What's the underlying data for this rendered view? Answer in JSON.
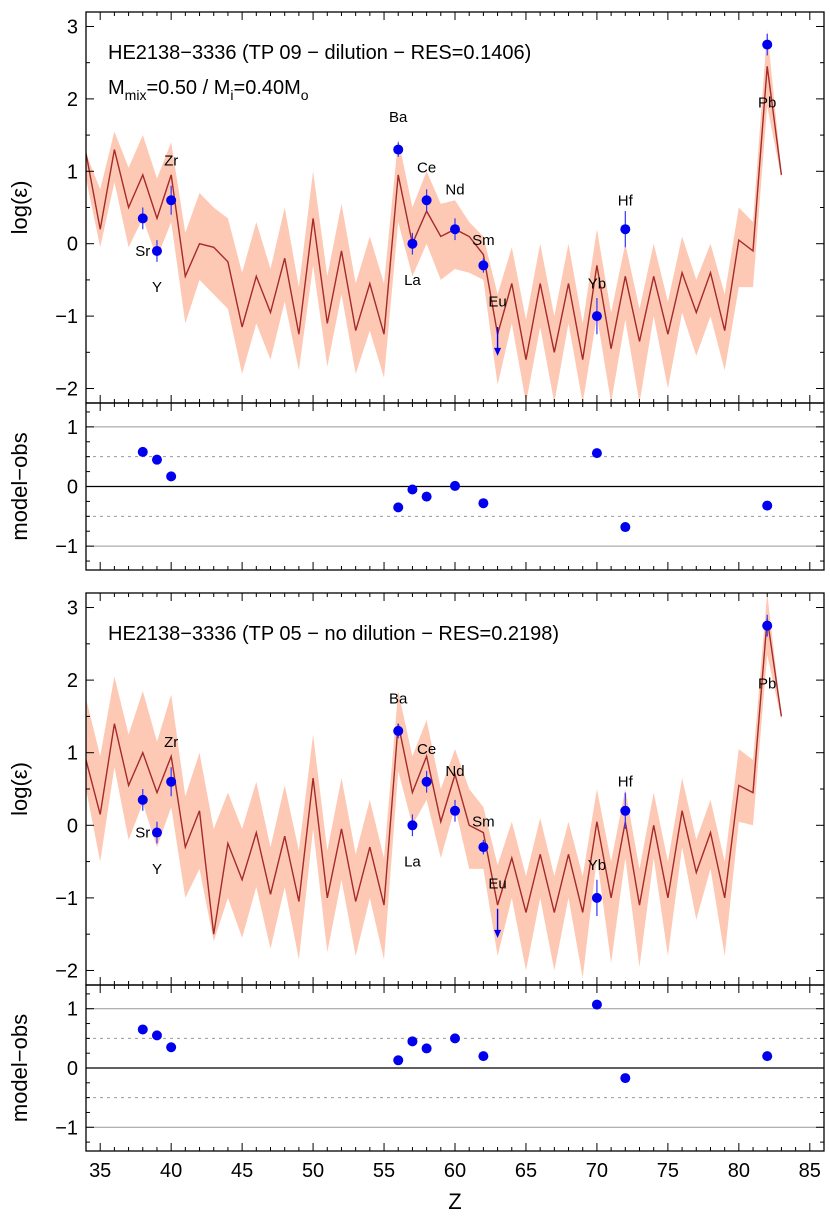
{
  "chart_data": [
    {
      "type": "line",
      "panel": "top-abundance",
      "title_line1": "HE2138−3336 (TP 09 − dilution − RES=0.1406)",
      "title_line2": {
        "a": "M",
        "a_sub": "mix",
        "b": "=0.50 / M",
        "b_sub": "i",
        "c": "=0.40M",
        "c_sub": "o"
      },
      "ylabel": "log(ε)",
      "xlim": [
        34,
        86
      ],
      "ylim": [
        -2.2,
        3.2
      ],
      "yticks": [
        -2,
        -1,
        0,
        1,
        2,
        3
      ],
      "model_line": {
        "x": [
          34,
          35,
          36,
          37,
          38,
          39,
          40,
          41,
          42,
          43,
          44,
          45,
          46,
          47,
          48,
          49,
          50,
          51,
          52,
          53,
          54,
          55,
          56,
          57,
          58,
          59,
          60,
          61,
          62,
          63,
          64,
          65,
          66,
          67,
          68,
          69,
          70,
          71,
          72,
          73,
          74,
          75,
          76,
          77,
          78,
          79,
          80,
          81,
          82,
          83
        ],
        "y": [
          1.25,
          0.2,
          1.3,
          0.5,
          0.95,
          0.35,
          0.95,
          -0.45,
          0.0,
          -0.05,
          -0.25,
          -1.15,
          -0.45,
          -0.95,
          -0.2,
          -1.25,
          0.35,
          -1.1,
          -0.1,
          -1.2,
          -0.55,
          -1.25,
          0.95,
          0.0,
          0.45,
          0.1,
          0.2,
          0.1,
          -0.15,
          -1.25,
          -0.55,
          -1.6,
          -0.55,
          -1.5,
          -0.55,
          -1.6,
          -0.3,
          -1.45,
          -0.45,
          -1.35,
          -0.45,
          -1.25,
          -0.4,
          -0.95,
          -0.4,
          -1.2,
          0.05,
          -0.1,
          2.45,
          0.95
        ]
      },
      "band_upper": [
        1.25,
        0.75,
        1.55,
        1.05,
        1.5,
        0.9,
        1.4,
        0.15,
        0.7,
        0.5,
        0.35,
        -0.4,
        0.3,
        -0.35,
        0.5,
        -0.6,
        1.0,
        -0.45,
        0.55,
        -0.55,
        0.1,
        -0.55,
        1.45,
        0.5,
        1.0,
        0.55,
        0.6,
        0.3,
        0.1,
        -0.7,
        -0.05,
        -1.05,
        0.0,
        -1.0,
        0.0,
        -1.1,
        0.2,
        -0.95,
        0.0,
        -0.9,
        0.0,
        -0.8,
        0.1,
        -0.5,
        0.0,
        -0.7,
        0.5,
        0.3,
        2.95,
        1.0
      ],
      "band_lower": [
        0.9,
        -0.05,
        0.85,
        -0.05,
        0.35,
        -0.2,
        0.3,
        -1.1,
        -0.5,
        -0.7,
        -0.9,
        -1.8,
        -1.1,
        -1.6,
        -0.8,
        -1.75,
        -0.3,
        -1.7,
        -0.7,
        -1.8,
        -1.2,
        -1.85,
        0.3,
        -0.45,
        0.0,
        -0.5,
        -0.35,
        -0.4,
        -0.5,
        -1.95,
        -1.1,
        -2.2,
        -1.15,
        -2.2,
        -1.1,
        -2.2,
        -1.0,
        -2.2,
        -1.05,
        -2.2,
        -1.0,
        -2.0,
        -0.95,
        -1.55,
        -1.0,
        -1.75,
        -0.6,
        -0.6,
        1.9,
        0.9
      ],
      "observations": [
        {
          "el": "Sr",
          "z": 38,
          "y": 0.35,
          "err": 0.15
        },
        {
          "el": "Y",
          "z": 39,
          "y": -0.1,
          "err": 0.15
        },
        {
          "el": "Zr",
          "z": 40,
          "y": 0.6,
          "err": 0.2
        },
        {
          "el": "Ba",
          "z": 56,
          "y": 1.3,
          "err": 0.1
        },
        {
          "el": "La",
          "z": 57,
          "y": 0.0,
          "err": 0.15
        },
        {
          "el": "Ce",
          "z": 58,
          "y": 0.6,
          "err": 0.15
        },
        {
          "el": "Nd",
          "z": 60,
          "y": 0.2,
          "err": 0.15
        },
        {
          "el": "Sm",
          "z": 62,
          "y": -0.3,
          "err": 0.1
        },
        {
          "el": "Yb",
          "z": 70,
          "y": -1.0,
          "err": 0.25
        },
        {
          "el": "Hf",
          "z": 72,
          "y": 0.2,
          "err": 0.25
        },
        {
          "el": "Pb",
          "z": 82,
          "y": 2.75,
          "err": 0.15
        }
      ],
      "upper_limits": [
        {
          "el": "Eu",
          "z": 63,
          "y": -1.15,
          "y_to": -1.55
        }
      ],
      "labels": [
        {
          "text": "Sr",
          "z": 38,
          "y": -0.1
        },
        {
          "text": "Y",
          "z": 39,
          "y": -0.6
        },
        {
          "text": "Zr",
          "z": 40,
          "y": 1.15
        },
        {
          "text": "Ba",
          "z": 56,
          "y": 1.75
        },
        {
          "text": "La",
          "z": 57,
          "y": -0.5
        },
        {
          "text": "Ce",
          "z": 58,
          "y": 1.05
        },
        {
          "text": "Nd",
          "z": 60,
          "y": 0.75
        },
        {
          "text": "Sm",
          "z": 62,
          "y": 0.05
        },
        {
          "text": "Eu",
          "z": 63,
          "y": -0.8
        },
        {
          "text": "Yb",
          "z": 70,
          "y": -0.55
        },
        {
          "text": "Hf",
          "z": 72,
          "y": 0.6
        },
        {
          "text": "Pb",
          "z": 82,
          "y": 1.95
        }
      ]
    },
    {
      "type": "scatter",
      "panel": "top-residual",
      "ylabel": "model−obs",
      "xlim": [
        34,
        86
      ],
      "ylim": [
        -1.4,
        1.4
      ],
      "yticks": [
        -1,
        0,
        1
      ],
      "points": [
        {
          "el": "Sr",
          "z": 38,
          "y": 0.58
        },
        {
          "el": "Y",
          "z": 39,
          "y": 0.45
        },
        {
          "el": "Zr",
          "z": 40,
          "y": 0.17
        },
        {
          "el": "Ba",
          "z": 56,
          "y": -0.35
        },
        {
          "el": "La",
          "z": 57,
          "y": -0.05
        },
        {
          "el": "Ce",
          "z": 58,
          "y": -0.17
        },
        {
          "el": "Nd",
          "z": 60,
          "y": 0.01
        },
        {
          "el": "Sm",
          "z": 62,
          "y": -0.28
        },
        {
          "el": "Yb",
          "z": 70,
          "y": 0.56
        },
        {
          "el": "Hf",
          "z": 72,
          "y": -0.68
        },
        {
          "el": "Pb",
          "z": 82,
          "y": -0.32
        }
      ]
    },
    {
      "type": "line",
      "panel": "bottom-abundance",
      "title_line1": "HE2138−3336 (TP 05 − no dilution − RES=0.2198)",
      "ylabel": "log(ε)",
      "xlim": [
        34,
        86
      ],
      "ylim": [
        -2.2,
        3.2
      ],
      "yticks": [
        -2,
        -1,
        0,
        1,
        2,
        3
      ],
      "model_line": {
        "x": [
          34,
          35,
          36,
          37,
          38,
          39,
          40,
          41,
          42,
          43,
          44,
          45,
          46,
          47,
          48,
          49,
          50,
          51,
          52,
          53,
          54,
          55,
          56,
          57,
          58,
          59,
          60,
          61,
          62,
          63,
          64,
          65,
          66,
          67,
          68,
          69,
          70,
          71,
          72,
          73,
          74,
          75,
          76,
          77,
          78,
          79,
          80,
          81,
          82,
          83
        ],
        "y": [
          0.9,
          0.15,
          1.4,
          0.55,
          1.0,
          0.45,
          0.95,
          -0.3,
          0.2,
          -1.5,
          -0.25,
          -0.75,
          -0.1,
          -0.95,
          -0.15,
          -1.05,
          0.65,
          -1.0,
          -0.05,
          -1.05,
          -0.3,
          -1.1,
          1.4,
          0.45,
          0.95,
          0.05,
          0.7,
          0.0,
          -0.1,
          -1.1,
          -0.45,
          -1.2,
          -0.4,
          -1.2,
          -0.4,
          -1.2,
          0.05,
          -1.0,
          0.05,
          -1.1,
          0.0,
          -1.0,
          0.2,
          -0.65,
          -0.1,
          -1.0,
          0.55,
          0.45,
          2.85,
          1.5
        ]
      },
      "band_upper": [
        1.75,
        0.95,
        2.05,
        1.25,
        1.85,
        1.15,
        1.8,
        0.4,
        1.0,
        -0.05,
        0.45,
        -0.05,
        0.6,
        -0.3,
        0.55,
        -0.35,
        1.25,
        -0.35,
        0.65,
        -0.4,
        0.35,
        -0.45,
        1.85,
        0.95,
        1.45,
        0.5,
        1.05,
        0.5,
        0.25,
        -0.55,
        0.05,
        -0.7,
        0.1,
        -0.7,
        0.05,
        -0.7,
        0.5,
        -0.5,
        0.5,
        -0.6,
        0.45,
        -0.5,
        0.65,
        -0.2,
        0.35,
        -0.5,
        1.05,
        0.9,
        3.2,
        1.5
      ],
      "band_lower": [
        0.5,
        -0.5,
        0.8,
        -0.2,
        0.3,
        -0.3,
        0.25,
        -1.0,
        -0.6,
        -1.6,
        -1.0,
        -1.55,
        -0.85,
        -1.7,
        -0.85,
        -1.85,
        -0.05,
        -1.75,
        -0.75,
        -1.8,
        -1.0,
        -1.85,
        0.75,
        0.0,
        0.35,
        -0.45,
        0.25,
        -0.6,
        -0.6,
        -1.8,
        -1.0,
        -2.0,
        -1.0,
        -2.0,
        -1.0,
        -2.1,
        -0.45,
        -1.9,
        -0.45,
        -1.95,
        -0.45,
        -1.8,
        -0.3,
        -1.3,
        -0.6,
        -1.8,
        0.05,
        0.0,
        2.35,
        1.45
      ],
      "observations": [
        {
          "el": "Sr",
          "z": 38,
          "y": 0.35,
          "err": 0.15
        },
        {
          "el": "Y",
          "z": 39,
          "y": -0.1,
          "err": 0.15
        },
        {
          "el": "Zr",
          "z": 40,
          "y": 0.6,
          "err": 0.2
        },
        {
          "el": "Ba",
          "z": 56,
          "y": 1.3,
          "err": 0.1
        },
        {
          "el": "La",
          "z": 57,
          "y": 0.0,
          "err": 0.15
        },
        {
          "el": "Ce",
          "z": 58,
          "y": 0.6,
          "err": 0.15
        },
        {
          "el": "Nd",
          "z": 60,
          "y": 0.2,
          "err": 0.15
        },
        {
          "el": "Sm",
          "z": 62,
          "y": -0.3,
          "err": 0.1
        },
        {
          "el": "Yb",
          "z": 70,
          "y": -1.0,
          "err": 0.25
        },
        {
          "el": "Hf",
          "z": 72,
          "y": 0.2,
          "err": 0.25
        },
        {
          "el": "Pb",
          "z": 82,
          "y": 2.75,
          "err": 0.15
        }
      ],
      "upper_limits": [
        {
          "el": "Eu",
          "z": 63,
          "y": -1.15,
          "y_to": -1.55
        }
      ],
      "labels": [
        {
          "text": "Sr",
          "z": 38,
          "y": -0.1
        },
        {
          "text": "Y",
          "z": 39,
          "y": -0.6
        },
        {
          "text": "Zr",
          "z": 40,
          "y": 1.15
        },
        {
          "text": "Ba",
          "z": 56,
          "y": 1.75
        },
        {
          "text": "La",
          "z": 57,
          "y": -0.5
        },
        {
          "text": "Ce",
          "z": 58,
          "y": 1.05
        },
        {
          "text": "Nd",
          "z": 60,
          "y": 0.75
        },
        {
          "text": "Sm",
          "z": 62,
          "y": 0.05
        },
        {
          "text": "Eu",
          "z": 63,
          "y": -0.8
        },
        {
          "text": "Yb",
          "z": 70,
          "y": -0.55
        },
        {
          "text": "Hf",
          "z": 72,
          "y": 0.6
        },
        {
          "text": "Pb",
          "z": 82,
          "y": 1.95
        }
      ]
    },
    {
      "type": "scatter",
      "panel": "bottom-residual",
      "ylabel": "model−obs",
      "xlabel": "Z",
      "xlim": [
        34,
        86
      ],
      "xticks": [
        35,
        40,
        45,
        50,
        55,
        60,
        65,
        70,
        75,
        80,
        85
      ],
      "ylim": [
        -1.4,
        1.4
      ],
      "yticks": [
        -1,
        0,
        1
      ],
      "points": [
        {
          "el": "Sr",
          "z": 38,
          "y": 0.65
        },
        {
          "el": "Y",
          "z": 39,
          "y": 0.55
        },
        {
          "el": "Zr",
          "z": 40,
          "y": 0.35
        },
        {
          "el": "Ba",
          "z": 56,
          "y": 0.13
        },
        {
          "el": "La",
          "z": 57,
          "y": 0.45
        },
        {
          "el": "Ce",
          "z": 58,
          "y": 0.33
        },
        {
          "el": "Nd",
          "z": 60,
          "y": 0.5
        },
        {
          "el": "Sm",
          "z": 62,
          "y": 0.2
        },
        {
          "el": "Yb",
          "z": 70,
          "y": 1.07
        },
        {
          "el": "Hf",
          "z": 72,
          "y": -0.17
        },
        {
          "el": "Pb",
          "z": 82,
          "y": 0.2
        }
      ]
    }
  ],
  "colors": {
    "band": "#fdc9b4",
    "model": "#a52a2a",
    "obs": "#0000ee",
    "errorbar": "#3333ff",
    "grid": "#999999"
  }
}
